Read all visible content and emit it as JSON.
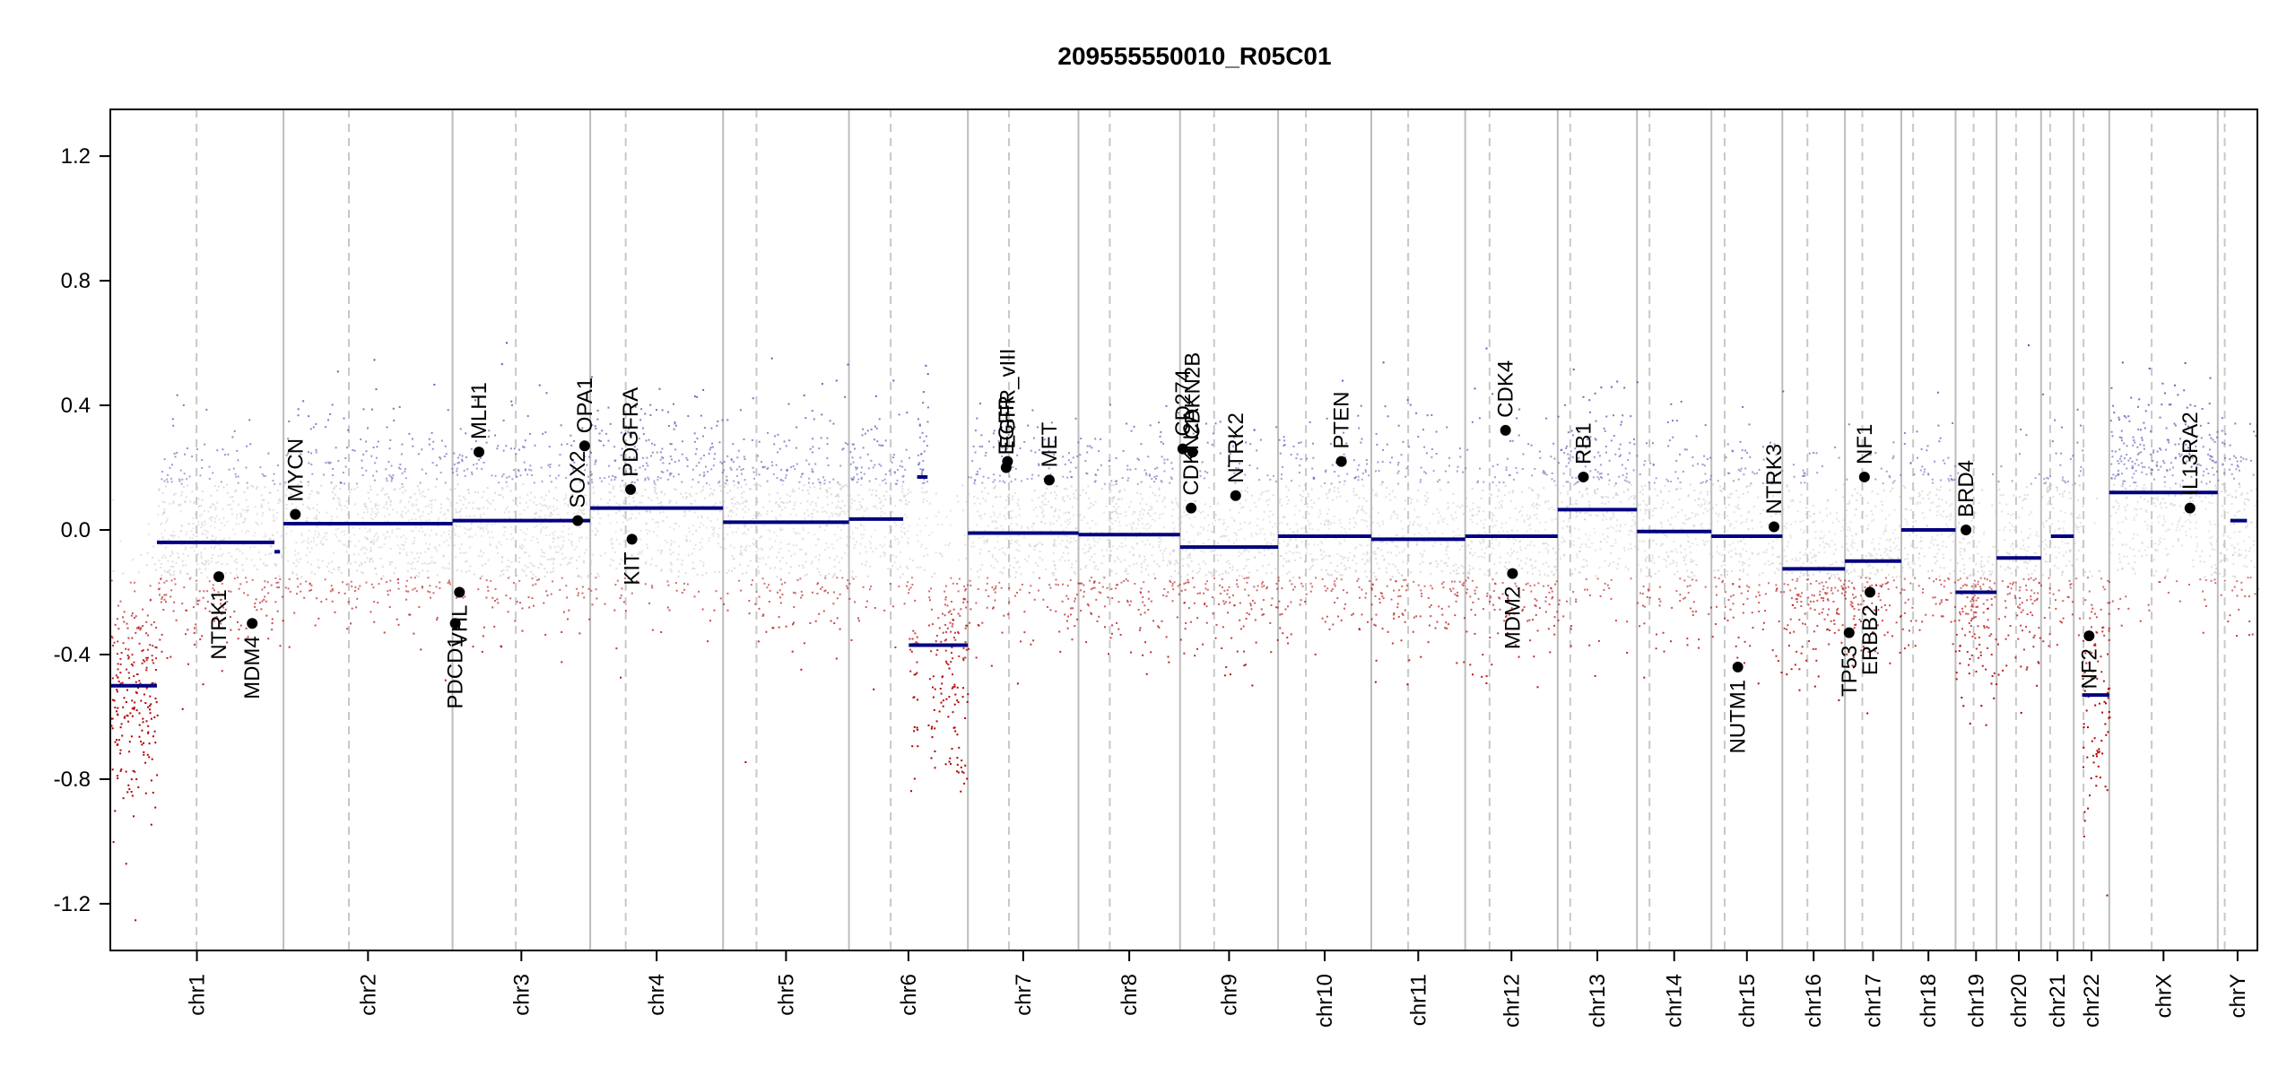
{
  "chart_data": {
    "type": "scatter",
    "title": "209555550010_R05C01",
    "xlabel": "",
    "ylabel": "",
    "ylim": [
      -1.35,
      1.35
    ],
    "yticks": [
      -1.2,
      -0.8,
      -0.4,
      0.0,
      0.4,
      0.8,
      1.2
    ],
    "ytick_labels": [
      "-1.2",
      "-0.8",
      "-0.4",
      "0.0",
      "0.4",
      "0.8",
      "1.2"
    ],
    "grid": false,
    "legend": "none",
    "colors": {
      "gain": "#5a5ab4",
      "neutral": "#bdbdbd",
      "loss": "#b00000",
      "segment": "#000080",
      "chrom_boundary": "#bdbdbd",
      "centromere": "#c8c8c8",
      "gene_point": "#000000"
    },
    "chromosomes": [
      {
        "name": "chr1",
        "start": 0,
        "end": 249,
        "centromere": 124
      },
      {
        "name": "chr2",
        "start": 249,
        "end": 492,
        "centromere": 343
      },
      {
        "name": "chr3",
        "start": 492,
        "end": 690,
        "centromere": 583
      },
      {
        "name": "chr4",
        "start": 690,
        "end": 881,
        "centromere": 741
      },
      {
        "name": "chr5",
        "start": 881,
        "end": 1062,
        "centromere": 929
      },
      {
        "name": "chr6",
        "start": 1062,
        "end": 1233,
        "centromere": 1122
      },
      {
        "name": "chr7",
        "start": 1233,
        "end": 1392,
        "centromere": 1292
      },
      {
        "name": "chr8",
        "start": 1392,
        "end": 1538,
        "centromere": 1437
      },
      {
        "name": "chr9",
        "start": 1538,
        "end": 1679,
        "centromere": 1587
      },
      {
        "name": "chr10",
        "start": 1679,
        "end": 1813,
        "centromere": 1719
      },
      {
        "name": "chr11",
        "start": 1813,
        "end": 1948,
        "centromere": 1866
      },
      {
        "name": "chr12",
        "start": 1948,
        "end": 2081,
        "centromere": 1983
      },
      {
        "name": "chr13",
        "start": 2081,
        "end": 2195,
        "centromere": 2099
      },
      {
        "name": "chr14",
        "start": 2195,
        "end": 2302,
        "centromere": 2213
      },
      {
        "name": "chr15",
        "start": 2302,
        "end": 2404,
        "centromere": 2321
      },
      {
        "name": "chr16",
        "start": 2404,
        "end": 2494,
        "centromere": 2440
      },
      {
        "name": "chr17",
        "start": 2494,
        "end": 2575,
        "centromere": 2519
      },
      {
        "name": "chr18",
        "start": 2575,
        "end": 2653,
        "centromere": 2592
      },
      {
        "name": "chr19",
        "start": 2653,
        "end": 2712,
        "centromere": 2679
      },
      {
        "name": "chr20",
        "start": 2712,
        "end": 2776,
        "centromere": 2740
      },
      {
        "name": "chr21",
        "start": 2776,
        "end": 2823,
        "centromere": 2789
      },
      {
        "name": "chr22",
        "start": 2823,
        "end": 2874,
        "centromere": 2837
      },
      {
        "name": "chrX",
        "start": 2874,
        "end": 3030,
        "centromere": 2935
      },
      {
        "name": "chrY",
        "start": 3030,
        "end": 3087,
        "centromere": 3040
      }
    ],
    "segments": [
      {
        "x0": 0,
        "x1": 67,
        "y": -0.5
      },
      {
        "x0": 67,
        "x1": 236,
        "y": -0.04
      },
      {
        "x0": 236,
        "x1": 244,
        "y": -0.07
      },
      {
        "x0": 249,
        "x1": 492,
        "y": 0.02
      },
      {
        "x0": 492,
        "x1": 690,
        "y": 0.03
      },
      {
        "x0": 690,
        "x1": 881,
        "y": 0.07
      },
      {
        "x0": 881,
        "x1": 1062,
        "y": 0.025
      },
      {
        "x0": 1062,
        "x1": 1140,
        "y": 0.035
      },
      {
        "x0": 1160,
        "x1": 1175,
        "y": 0.17
      },
      {
        "x0": 1148,
        "x1": 1233,
        "y": -0.37
      },
      {
        "x0": 1233,
        "x1": 1392,
        "y": -0.01
      },
      {
        "x0": 1392,
        "x1": 1538,
        "y": -0.015
      },
      {
        "x0": 1538,
        "x1": 1679,
        "y": -0.055
      },
      {
        "x0": 1679,
        "x1": 1813,
        "y": -0.02
      },
      {
        "x0": 1813,
        "x1": 1948,
        "y": -0.03
      },
      {
        "x0": 1948,
        "x1": 2081,
        "y": -0.02
      },
      {
        "x0": 2081,
        "x1": 2195,
        "y": 0.065
      },
      {
        "x0": 2195,
        "x1": 2302,
        "y": -0.005
      },
      {
        "x0": 2302,
        "x1": 2404,
        "y": -0.02
      },
      {
        "x0": 2404,
        "x1": 2494,
        "y": -0.125
      },
      {
        "x0": 2494,
        "x1": 2575,
        "y": -0.1
      },
      {
        "x0": 2575,
        "x1": 2653,
        "y": 0.0
      },
      {
        "x0": 2653,
        "x1": 2712,
        "y": -0.2
      },
      {
        "x0": 2712,
        "x1": 2776,
        "y": -0.09
      },
      {
        "x0": 2790,
        "x1": 2823,
        "y": -0.02
      },
      {
        "x0": 2835,
        "x1": 2874,
        "y": -0.53
      },
      {
        "x0": 2874,
        "x1": 3030,
        "y": 0.12
      },
      {
        "x0": 3048,
        "x1": 3072,
        "y": 0.03
      }
    ],
    "genes": [
      {
        "name": "NTRK1",
        "x": 156,
        "y": -0.15,
        "label_dir": "down"
      },
      {
        "name": "MDM4",
        "x": 204,
        "y": -0.3,
        "label_dir": "down"
      },
      {
        "name": "MYCN",
        "x": 266,
        "y": 0.05,
        "label_dir": "up"
      },
      {
        "name": "PDCD1",
        "x": 496,
        "y": -0.3,
        "label_dir": "down"
      },
      {
        "name": "VHL",
        "x": 502,
        "y": -0.2,
        "label_dir": "down"
      },
      {
        "name": "MLH1",
        "x": 530,
        "y": 0.25,
        "label_dir": "up"
      },
      {
        "name": "SOX2",
        "x": 672,
        "y": 0.03,
        "label_dir": "up"
      },
      {
        "name": "OPA1",
        "x": 682,
        "y": 0.27,
        "label_dir": "up"
      },
      {
        "name": "PDGFRA",
        "x": 748,
        "y": 0.13,
        "label_dir": "up"
      },
      {
        "name": "KIT",
        "x": 750,
        "y": -0.03,
        "label_dir": "down"
      },
      {
        "name": "EGFR",
        "x": 1288,
        "y": 0.2,
        "label_dir": "up"
      },
      {
        "name": "EGFR_vIII",
        "x": 1290,
        "y": 0.22,
        "label_dir": "up"
      },
      {
        "name": "MET",
        "x": 1350,
        "y": 0.16,
        "label_dir": "up"
      },
      {
        "name": "CD274",
        "x": 1542,
        "y": 0.26,
        "label_dir": "up"
      },
      {
        "name": "CDKN2A",
        "x": 1554,
        "y": 0.07,
        "label_dir": "up"
      },
      {
        "name": "CDKN2B",
        "x": 1556,
        "y": 0.25,
        "label_dir": "up"
      },
      {
        "name": "NTRK2",
        "x": 1618,
        "y": 0.11,
        "label_dir": "up"
      },
      {
        "name": "PTEN",
        "x": 1770,
        "y": 0.22,
        "label_dir": "up"
      },
      {
        "name": "CDK4",
        "x": 2006,
        "y": 0.32,
        "label_dir": "up"
      },
      {
        "name": "MDM2",
        "x": 2016,
        "y": -0.14,
        "label_dir": "down"
      },
      {
        "name": "RB1",
        "x": 2118,
        "y": 0.17,
        "label_dir": "up"
      },
      {
        "name": "NUTM1",
        "x": 2340,
        "y": -0.44,
        "label_dir": "down"
      },
      {
        "name": "NTRK3",
        "x": 2392,
        "y": 0.01,
        "label_dir": "up"
      },
      {
        "name": "TP53",
        "x": 2500,
        "y": -0.33,
        "label_dir": "down"
      },
      {
        "name": "ERBB2",
        "x": 2530,
        "y": -0.2,
        "label_dir": "down"
      },
      {
        "name": "NF1",
        "x": 2522,
        "y": 0.17,
        "label_dir": "up"
      },
      {
        "name": "BRD4",
        "x": 2668,
        "y": 0.0,
        "label_dir": "up"
      },
      {
        "name": "NF2",
        "x": 2845,
        "y": -0.34,
        "label_dir": "down"
      },
      {
        "name": "IL13RA2",
        "x": 2990,
        "y": 0.07,
        "label_dir": "up"
      }
    ]
  }
}
